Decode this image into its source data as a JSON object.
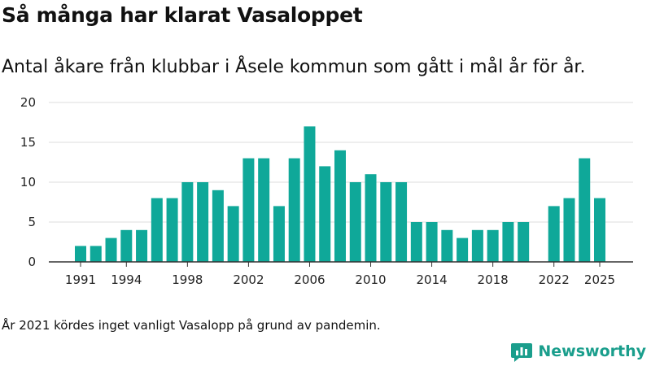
{
  "header": {
    "title": "Så många har klarat Vasaloppet",
    "subtitle": "Antal åkare från klubbar i Åsele kommun som gått i mål år för år."
  },
  "chart_data": {
    "type": "bar",
    "x": [
      1991,
      1992,
      1993,
      1994,
      1995,
      1996,
      1997,
      1998,
      1999,
      2000,
      2001,
      2002,
      2003,
      2004,
      2005,
      2006,
      2007,
      2008,
      2009,
      2010,
      2011,
      2012,
      2013,
      2014,
      2015,
      2016,
      2017,
      2018,
      2019,
      2020,
      2021,
      2022,
      2023,
      2024,
      2025
    ],
    "values": [
      2,
      2,
      3,
      4,
      4,
      8,
      8,
      10,
      10,
      9,
      7,
      13,
      13,
      7,
      13,
      17,
      12,
      14,
      10,
      11,
      10,
      10,
      5,
      5,
      4,
      3,
      4,
      4,
      5,
      5,
      null,
      7,
      8,
      13,
      8
    ],
    "x_tick_labels": [
      "1991",
      "1994",
      "1998",
      "2002",
      "2006",
      "2010",
      "2014",
      "2018",
      "2022",
      "2025"
    ],
    "y_ticks": [
      0,
      5,
      10,
      15,
      20
    ],
    "ylim": [
      0,
      20
    ],
    "grid": true,
    "bar_color": "#0fa899",
    "xlabel": "",
    "ylabel": ""
  },
  "footer": {
    "note": "År 2021 kördes inget vanligt Vasalopp på grund av pandemin.",
    "brand": "Newsworthy",
    "brand_icon": "bar-chart-logo-icon",
    "brand_color": "#1a9e8c"
  }
}
